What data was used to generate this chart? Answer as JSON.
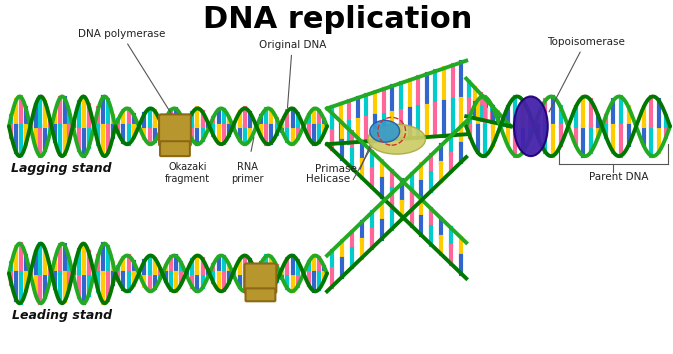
{
  "title": "DNA replication",
  "title_fontsize": 22,
  "title_fontweight": "bold",
  "background_color": "#ffffff",
  "text_color": "#000000",
  "labels": {
    "dna_polymerase": "DNA polymerase",
    "original_dna": "Original DNA",
    "okazaki": "Okazaki\nfragment",
    "rna_primer": "RNA\nprimer",
    "primase": "Primase",
    "helicase": "Helicase",
    "topoisomerase": "Topoisomerase",
    "parent_dna": "Parent DNA",
    "lagging_stand": "Lagging stand",
    "leading_stand": "Leading stand"
  },
  "colors": {
    "dna_backbone": "#22aa22",
    "dna_backbone_dark": "#007700",
    "base_cyan": "#00cccc",
    "base_yellow": "#ffcc00",
    "base_pink": "#ff6699",
    "base_blue": "#3366cc",
    "polymerase": "#b8962e",
    "topoisomerase": "#4422aa",
    "helicase": "#cccc66",
    "primase": "#3399cc",
    "label_line": "#555555"
  }
}
